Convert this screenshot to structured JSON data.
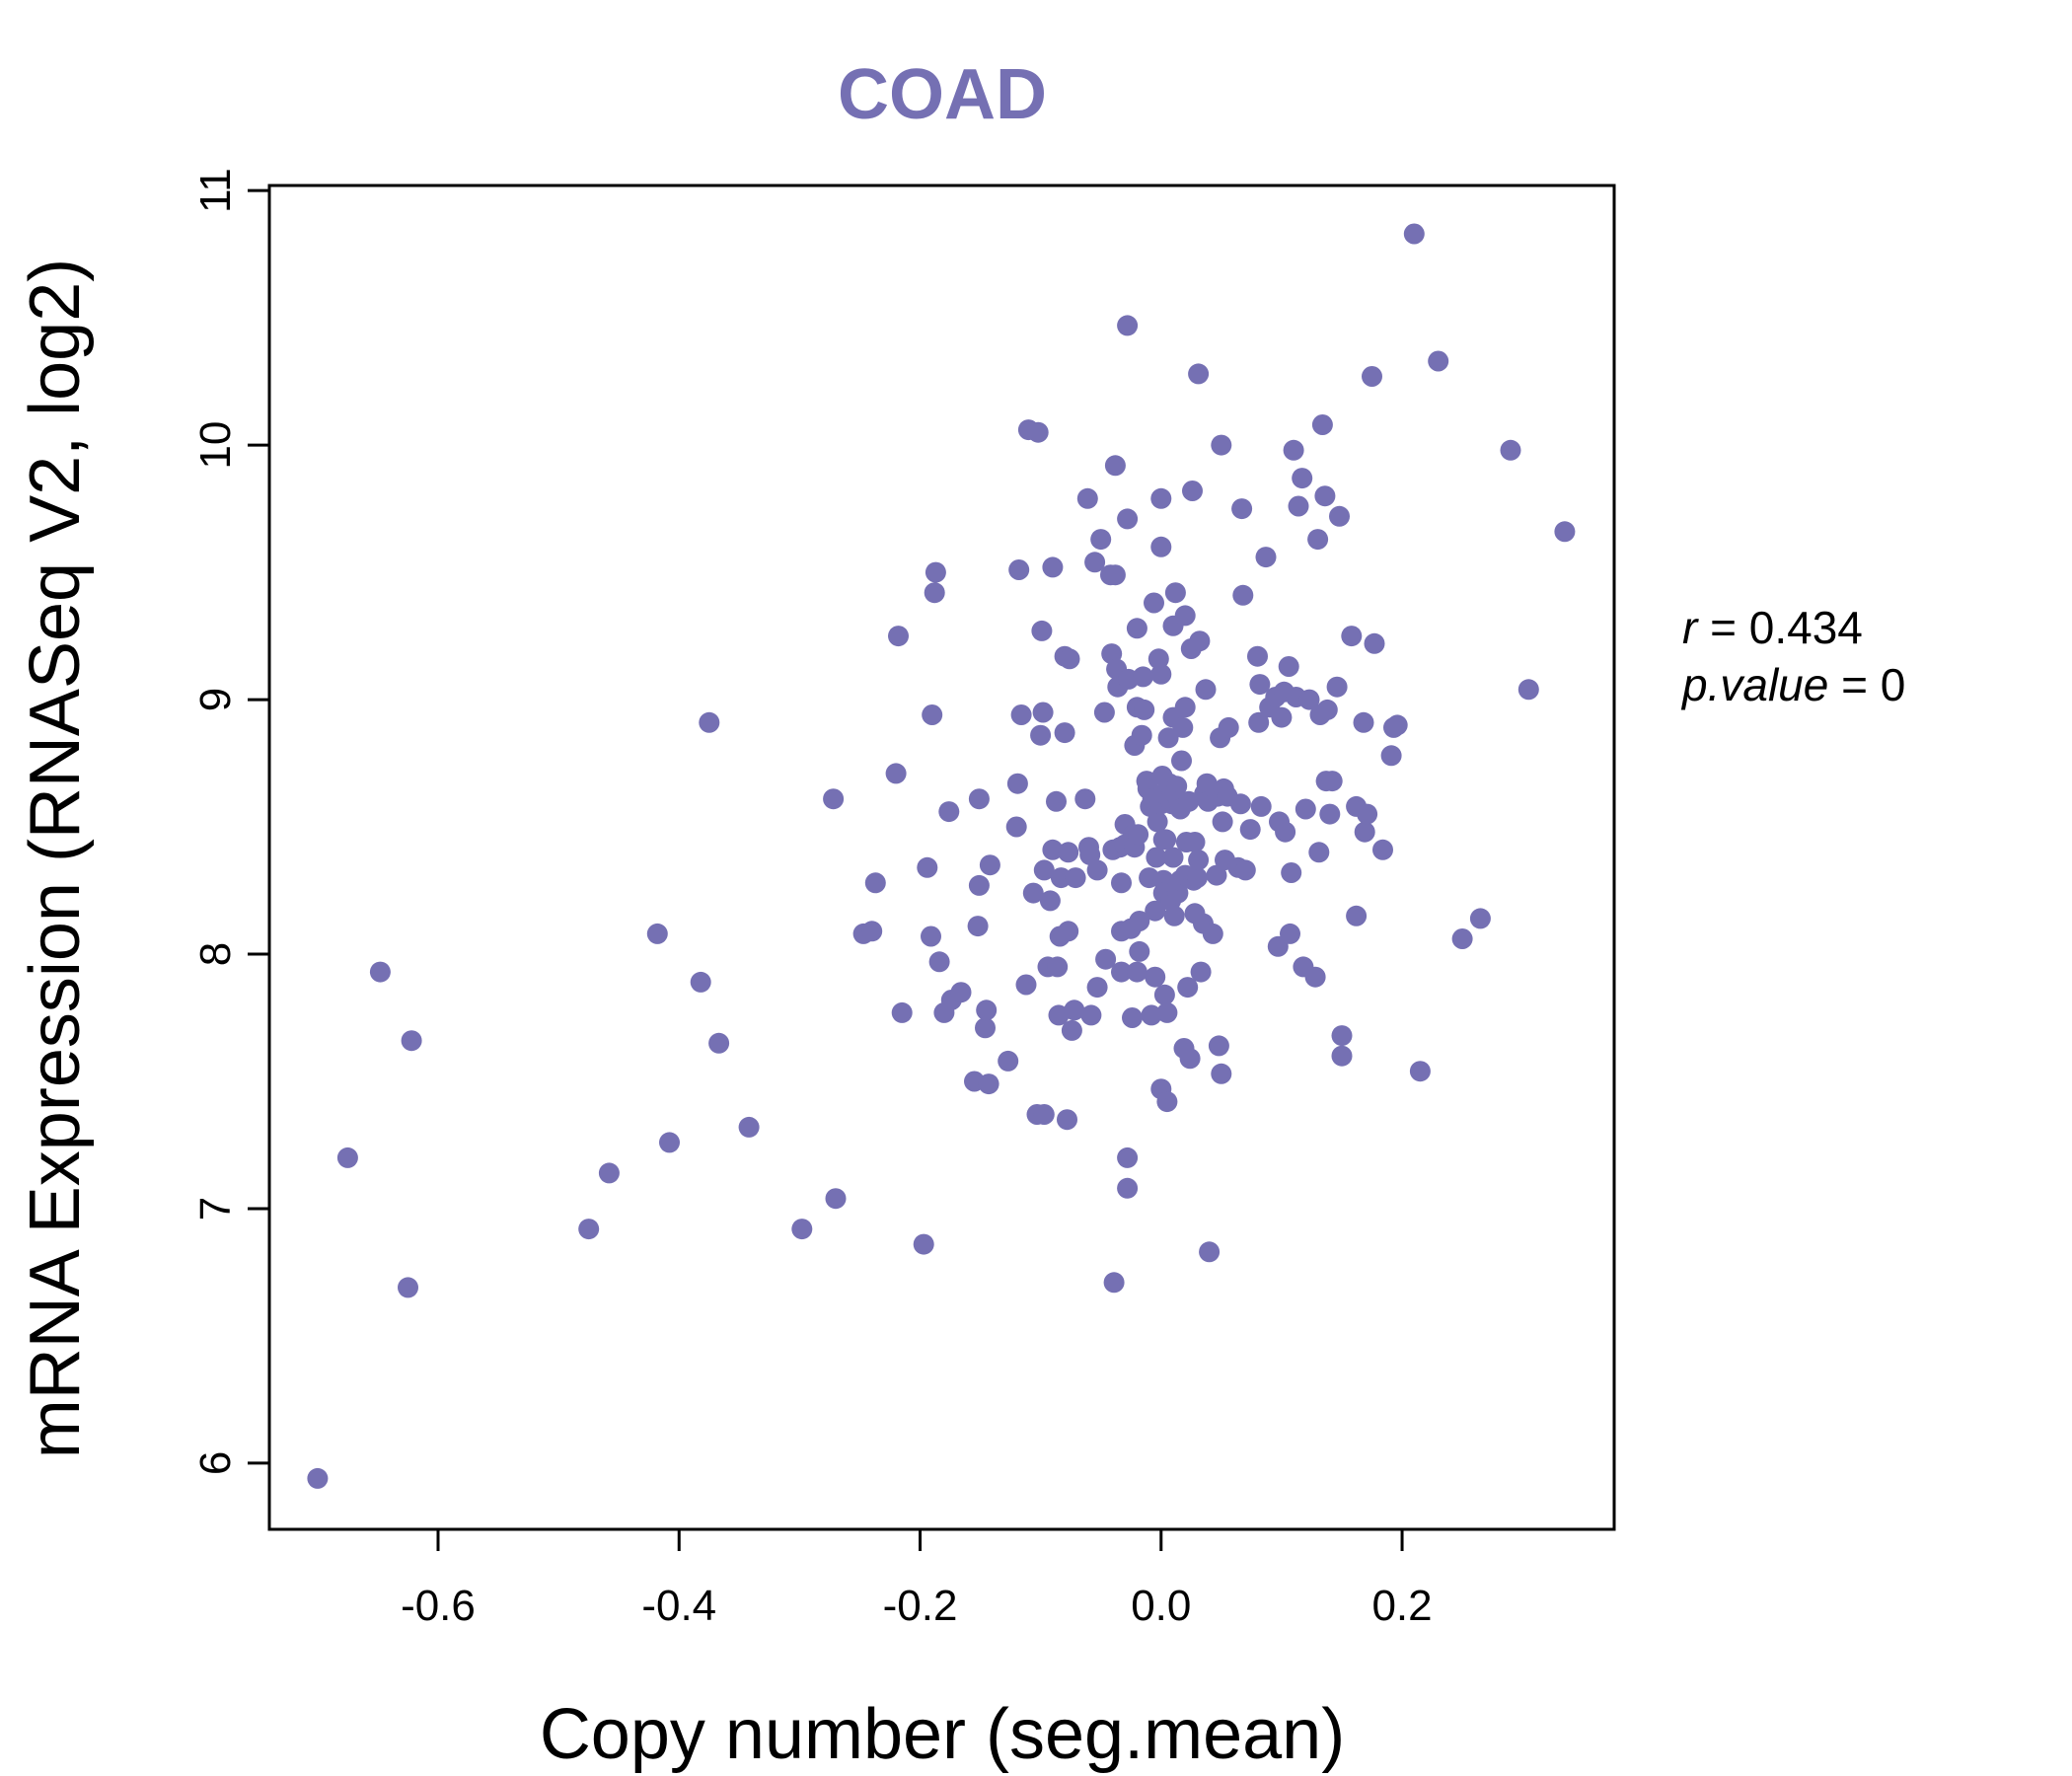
{
  "chart_data": {
    "type": "scatter",
    "title": "COAD",
    "xlabel": "Copy number (seg.mean)",
    "ylabel": "mRNA Expression (RNASeq V2, log2)",
    "xlim": [
      -0.74,
      0.376
    ],
    "ylim": [
      5.74,
      11.02
    ],
    "xticks": [
      -0.6,
      -0.4,
      -0.2,
      0.0,
      0.2
    ],
    "xtick_labels": [
      "-0.6",
      "-0.4",
      "-0.2",
      "0.0",
      "0.2"
    ],
    "yticks": [
      6,
      7,
      8,
      9,
      10,
      11
    ],
    "ytick_labels": [
      "6",
      "7",
      "8",
      "9",
      "10",
      "11"
    ],
    "point_color": "#7570b3",
    "stats": {
      "r_label": "r",
      "r_value": "0.434",
      "p_label": "p.value",
      "p_value": "0"
    },
    "points": [
      [
        -0.7,
        5.94
      ],
      [
        -0.675,
        7.2
      ],
      [
        -0.648,
        7.93
      ],
      [
        -0.625,
        6.69
      ],
      [
        -0.622,
        7.66
      ],
      [
        -0.475,
        6.92
      ],
      [
        -0.458,
        7.14
      ],
      [
        -0.418,
        8.08
      ],
      [
        -0.408,
        7.26
      ],
      [
        -0.382,
        7.89
      ],
      [
        -0.375,
        8.91
      ],
      [
        -0.367,
        7.65
      ],
      [
        -0.342,
        7.32
      ],
      [
        -0.298,
        6.92
      ],
      [
        -0.272,
        8.61
      ],
      [
        -0.27,
        7.04
      ],
      [
        -0.247,
        8.08
      ],
      [
        -0.24,
        8.09
      ],
      [
        -0.237,
        8.28
      ],
      [
        -0.22,
        8.71
      ],
      [
        -0.218,
        9.25
      ],
      [
        -0.215,
        7.77
      ],
      [
        -0.197,
        6.86
      ],
      [
        -0.194,
        8.34
      ],
      [
        -0.191,
        8.07
      ],
      [
        -0.19,
        8.94
      ],
      [
        -0.188,
        9.42
      ],
      [
        -0.187,
        9.5
      ],
      [
        -0.184,
        7.97
      ],
      [
        -0.18,
        7.77
      ],
      [
        -0.176,
        8.56
      ],
      [
        -0.174,
        7.82
      ],
      [
        -0.166,
        7.85
      ],
      [
        -0.155,
        7.5
      ],
      [
        -0.152,
        8.11
      ],
      [
        -0.151,
        8.61
      ],
      [
        -0.151,
        8.27
      ],
      [
        -0.146,
        7.71
      ],
      [
        -0.145,
        7.78
      ],
      [
        -0.143,
        7.49
      ],
      [
        -0.142,
        8.35
      ],
      [
        -0.127,
        7.58
      ],
      [
        -0.12,
        8.5
      ],
      [
        -0.119,
        8.67
      ],
      [
        -0.118,
        9.51
      ],
      [
        -0.116,
        8.94
      ],
      [
        -0.112,
        7.88
      ],
      [
        -0.11,
        10.06
      ],
      [
        -0.106,
        8.24
      ],
      [
        -0.103,
        7.37
      ],
      [
        -0.102,
        10.05
      ],
      [
        -0.1,
        8.86
      ],
      [
        -0.099,
        9.27
      ],
      [
        -0.098,
        8.95
      ],
      [
        -0.097,
        8.33
      ],
      [
        -0.097,
        7.37
      ],
      [
        -0.094,
        7.95
      ],
      [
        -0.092,
        8.21
      ],
      [
        -0.09,
        9.52
      ],
      [
        -0.09,
        8.41
      ],
      [
        -0.087,
        8.6
      ],
      [
        -0.086,
        7.95
      ],
      [
        -0.085,
        7.76
      ],
      [
        -0.084,
        8.07
      ],
      [
        -0.083,
        8.3
      ],
      [
        -0.08,
        9.17
      ],
      [
        -0.08,
        8.87
      ],
      [
        -0.078,
        7.35
      ],
      [
        -0.077,
        8.4
      ],
      [
        -0.077,
        8.09
      ],
      [
        -0.076,
        9.16
      ],
      [
        -0.074,
        7.7
      ],
      [
        -0.072,
        7.78
      ],
      [
        -0.071,
        8.3
      ],
      [
        -0.063,
        8.61
      ],
      [
        -0.061,
        9.79
      ],
      [
        -0.06,
        8.42
      ],
      [
        -0.059,
        8.39
      ],
      [
        -0.058,
        7.76
      ],
      [
        -0.055,
        9.54
      ],
      [
        -0.053,
        8.33
      ],
      [
        -0.053,
        7.87
      ],
      [
        -0.05,
        9.63
      ],
      [
        -0.047,
        8.95
      ],
      [
        -0.046,
        7.98
      ],
      [
        -0.042,
        9.49
      ],
      [
        -0.041,
        9.18
      ],
      [
        -0.04,
        8.41
      ],
      [
        -0.039,
        6.71
      ],
      [
        -0.038,
        9.92
      ],
      [
        -0.038,
        9.49
      ],
      [
        -0.037,
        9.12
      ],
      [
        -0.036,
        9.05
      ],
      [
        -0.034,
        8.42
      ],
      [
        -0.033,
        8.28
      ],
      [
        -0.033,
        8.09
      ],
      [
        -0.033,
        7.93
      ],
      [
        -0.03,
        8.43
      ],
      [
        -0.03,
        8.51
      ],
      [
        -0.028,
        10.47
      ],
      [
        -0.028,
        9.71
      ],
      [
        -0.028,
        7.2
      ],
      [
        -0.028,
        7.08
      ],
      [
        -0.027,
        9.08
      ],
      [
        -0.025,
        8.1
      ],
      [
        -0.024,
        7.75
      ],
      [
        -0.023,
        8.47
      ],
      [
        -0.022,
        8.42
      ],
      [
        -0.022,
        8.82
      ],
      [
        -0.02,
        9.28
      ],
      [
        -0.02,
        8.97
      ],
      [
        -0.02,
        7.93
      ],
      [
        -0.019,
        8.47
      ],
      [
        -0.018,
        8.13
      ],
      [
        -0.018,
        8.01
      ],
      [
        -0.016,
        8.86
      ],
      [
        -0.015,
        9.09
      ],
      [
        -0.014,
        8.96
      ],
      [
        -0.012,
        8.68
      ],
      [
        -0.011,
        8.65
      ],
      [
        -0.01,
        8.3
      ],
      [
        -0.009,
        8.58
      ],
      [
        -0.008,
        7.76
      ],
      [
        -0.007,
        8.61
      ],
      [
        -0.006,
        9.38
      ],
      [
        -0.005,
        7.91
      ],
      [
        -0.005,
        8.17
      ],
      [
        -0.004,
        8.38
      ],
      [
        -0.003,
        8.52
      ],
      [
        -0.002,
        9.16
      ],
      [
        -0.001,
        8.6
      ],
      [
        0.0,
        9.79
      ],
      [
        0.0,
        9.6
      ],
      [
        0.0,
        9.1
      ],
      [
        0.0,
        8.59
      ],
      [
        0.0,
        7.47
      ],
      [
        0.001,
        8.7
      ],
      [
        0.002,
        8.63
      ],
      [
        0.002,
        8.45
      ],
      [
        0.002,
        8.29
      ],
      [
        0.002,
        8.24
      ],
      [
        0.003,
        7.84
      ],
      [
        0.004,
        8.45
      ],
      [
        0.005,
        7.42
      ],
      [
        0.005,
        7.77
      ],
      [
        0.006,
        8.85
      ],
      [
        0.007,
        8.67
      ],
      [
        0.008,
        8.21
      ],
      [
        0.009,
        8.59
      ],
      [
        0.009,
        8.64
      ],
      [
        0.01,
        9.29
      ],
      [
        0.01,
        8.93
      ],
      [
        0.01,
        8.38
      ],
      [
        0.011,
        8.15
      ],
      [
        0.012,
        9.42
      ],
      [
        0.013,
        8.66
      ],
      [
        0.014,
        8.24
      ],
      [
        0.015,
        8.6
      ],
      [
        0.016,
        8.29
      ],
      [
        0.016,
        8.57
      ],
      [
        0.017,
        8.76
      ],
      [
        0.018,
        8.89
      ],
      [
        0.019,
        7.63
      ],
      [
        0.02,
        9.33
      ],
      [
        0.02,
        8.97
      ],
      [
        0.02,
        8.31
      ],
      [
        0.021,
        8.44
      ],
      [
        0.022,
        7.87
      ],
      [
        0.023,
        8.6
      ],
      [
        0.024,
        7.59
      ],
      [
        0.025,
        9.2
      ],
      [
        0.026,
        9.82
      ],
      [
        0.027,
        8.29
      ],
      [
        0.028,
        8.44
      ],
      [
        0.028,
        8.16
      ],
      [
        0.03,
        8.3
      ],
      [
        0.031,
        10.28
      ],
      [
        0.031,
        8.37
      ],
      [
        0.032,
        9.23
      ],
      [
        0.033,
        7.93
      ],
      [
        0.035,
        8.12
      ],
      [
        0.036,
        8.63
      ],
      [
        0.037,
        9.04
      ],
      [
        0.038,
        8.67
      ],
      [
        0.039,
        8.6
      ],
      [
        0.04,
        6.83
      ],
      [
        0.043,
        8.08
      ],
      [
        0.046,
        8.31
      ],
      [
        0.047,
        8.62
      ],
      [
        0.048,
        7.64
      ],
      [
        0.049,
        8.85
      ],
      [
        0.05,
        10.0
      ],
      [
        0.05,
        7.53
      ],
      [
        0.051,
        8.52
      ],
      [
        0.052,
        8.65
      ],
      [
        0.053,
        8.37
      ],
      [
        0.055,
        8.62
      ],
      [
        0.056,
        8.89
      ],
      [
        0.064,
        8.34
      ],
      [
        0.066,
        8.59
      ],
      [
        0.067,
        9.75
      ],
      [
        0.068,
        9.41
      ],
      [
        0.07,
        8.33
      ],
      [
        0.074,
        8.49
      ],
      [
        0.08,
        9.17
      ],
      [
        0.081,
        8.91
      ],
      [
        0.082,
        9.06
      ],
      [
        0.083,
        8.58
      ],
      [
        0.087,
        9.56
      ],
      [
        0.09,
        8.97
      ],
      [
        0.095,
        9.01
      ],
      [
        0.097,
        8.03
      ],
      [
        0.098,
        8.52
      ],
      [
        0.1,
        8.93
      ],
      [
        0.102,
        9.03
      ],
      [
        0.103,
        8.48
      ],
      [
        0.106,
        9.13
      ],
      [
        0.107,
        8.08
      ],
      [
        0.108,
        8.32
      ],
      [
        0.11,
        9.98
      ],
      [
        0.112,
        9.01
      ],
      [
        0.114,
        9.76
      ],
      [
        0.117,
        9.87
      ],
      [
        0.118,
        7.95
      ],
      [
        0.12,
        8.57
      ],
      [
        0.123,
        9.0
      ],
      [
        0.128,
        7.91
      ],
      [
        0.13,
        9.63
      ],
      [
        0.131,
        8.4
      ],
      [
        0.132,
        8.94
      ],
      [
        0.134,
        10.08
      ],
      [
        0.136,
        9.8
      ],
      [
        0.137,
        8.68
      ],
      [
        0.138,
        8.96
      ],
      [
        0.14,
        8.55
      ],
      [
        0.142,
        8.68
      ],
      [
        0.146,
        9.05
      ],
      [
        0.148,
        9.72
      ],
      [
        0.15,
        7.68
      ],
      [
        0.15,
        7.6
      ],
      [
        0.158,
        9.25
      ],
      [
        0.162,
        8.58
      ],
      [
        0.162,
        8.15
      ],
      [
        0.168,
        8.91
      ],
      [
        0.169,
        8.48
      ],
      [
        0.171,
        8.55
      ],
      [
        0.175,
        10.27
      ],
      [
        0.177,
        9.22
      ],
      [
        0.184,
        8.41
      ],
      [
        0.191,
        8.78
      ],
      [
        0.193,
        8.89
      ],
      [
        0.196,
        8.9
      ],
      [
        0.21,
        10.83
      ],
      [
        0.215,
        7.54
      ],
      [
        0.23,
        10.33
      ],
      [
        0.25,
        8.06
      ],
      [
        0.265,
        8.14
      ],
      [
        0.29,
        9.98
      ],
      [
        0.305,
        9.04
      ],
      [
        0.335,
        9.66
      ]
    ]
  }
}
